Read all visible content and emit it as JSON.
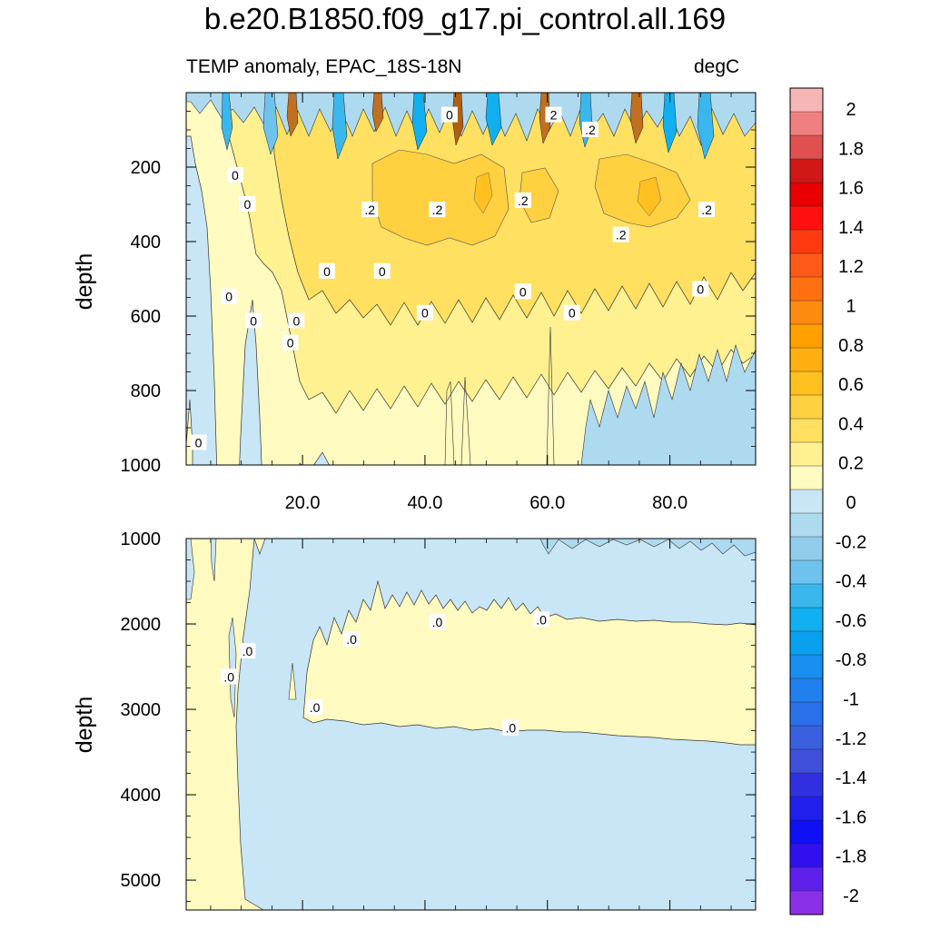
{
  "title": "b.e20.B1850.f09_g17.pi_control.all.169",
  "subtitle_left": "TEMP anomaly, EPAC_18S-18N",
  "subtitle_right": "degC",
  "chart_data": [
    {
      "type": "heatmap",
      "panel": "upper",
      "ylabel": "depth",
      "xlabel": "",
      "xlim": [
        1,
        94
      ],
      "ylim": [
        0,
        1000
      ],
      "y_reversed": true,
      "x_ticks": [
        "20.0",
        "40.0",
        "60.0",
        "80.0"
      ],
      "x_tick_values": [
        20,
        40,
        60,
        80
      ],
      "y_ticks": [
        "200",
        "400",
        "600",
        "800",
        "1000"
      ],
      "y_tick_values": [
        200,
        400,
        600,
        800,
        1000
      ],
      "contour_labels": [
        {
          "text": "0",
          "x": 44,
          "y": 60
        },
        {
          "text": "2",
          "x": 61,
          "y": 60
        },
        {
          "text": ".2",
          "x": 67,
          "y": 100
        },
        {
          "text": "0",
          "x": 9,
          "y": 222
        },
        {
          "text": "0",
          "x": 11,
          "y": 300
        },
        {
          "text": ".2",
          "x": 31,
          "y": 315
        },
        {
          "text": ".2",
          "x": 42,
          "y": 315
        },
        {
          "text": ".2",
          "x": 56,
          "y": 290
        },
        {
          "text": ".2",
          "x": 86,
          "y": 315
        },
        {
          "text": ".2",
          "x": 72,
          "y": 382
        },
        {
          "text": "0",
          "x": 24,
          "y": 480
        },
        {
          "text": "0",
          "x": 33,
          "y": 480
        },
        {
          "text": "0",
          "x": 8,
          "y": 548
        },
        {
          "text": "0",
          "x": 56,
          "y": 535
        },
        {
          "text": "0",
          "x": 85,
          "y": 528
        },
        {
          "text": "0",
          "x": 40,
          "y": 592
        },
        {
          "text": "0",
          "x": 64,
          "y": 592
        },
        {
          "text": "0",
          "x": 12,
          "y": 613
        },
        {
          "text": "0",
          "x": 19,
          "y": 613
        },
        {
          "text": "0",
          "x": 18,
          "y": 672
        },
        {
          "text": "0",
          "x": 3,
          "y": 940
        }
      ]
    },
    {
      "type": "heatmap",
      "panel": "lower",
      "ylabel": "depth",
      "xlabel": "",
      "xlim": [
        1,
        94
      ],
      "ylim": [
        1000,
        5350
      ],
      "y_reversed": true,
      "y_ticks": [
        "1000",
        "2000",
        "3000",
        "4000",
        "5000"
      ],
      "y_tick_values": [
        1000,
        2000,
        3000,
        4000,
        5000
      ],
      "contour_labels": [
        {
          "text": ".0",
          "x": 11,
          "y": 2320
        },
        {
          "text": ".0",
          "x": 8,
          "y": 2620
        },
        {
          "text": ".0",
          "x": 28,
          "y": 2180
        },
        {
          "text": ".0",
          "x": 42,
          "y": 1980
        },
        {
          "text": ".0",
          "x": 59,
          "y": 1950
        },
        {
          "text": ".0",
          "x": 22,
          "y": 2980
        },
        {
          "text": ".0",
          "x": 54,
          "y": 3220
        }
      ]
    }
  ],
  "colorbar": {
    "labels": [
      "2",
      "1.8",
      "1.6",
      "1.4",
      "1.2",
      "1",
      "0.8",
      "0.6",
      "0.4",
      "0.2",
      "0",
      "-0.2",
      "-0.4",
      "-0.6",
      "-0.8",
      "-1",
      "-1.2",
      "-1.4",
      "-1.6",
      "-1.8",
      "-2"
    ],
    "colors_top_to_bottom": [
      "#f7b6b6",
      "#f08080",
      "#e05050",
      "#d01818",
      "#e80000",
      "#ff1010",
      "#ff3a10",
      "#ff5a18",
      "#ff7010",
      "#ff8a10",
      "#ffa000",
      "#ffb010",
      "#ffc020",
      "#ffd040",
      "#ffe060",
      "#fff090",
      "#fffac0",
      "#c8e6f5",
      "#aedaf0",
      "#93cceb",
      "#6ec3ee",
      "#3ab8ee",
      "#10b0f0",
      "#0aa0f0",
      "#1890ef",
      "#2080ee",
      "#2a70ea",
      "#3a60e0",
      "#4050da",
      "#3030e0",
      "#2020ec",
      "#1010f5",
      "#3010ef",
      "#5e20ea",
      "#8a30e8"
    ]
  },
  "colors": {
    "neg_01": "#c8e6f5",
    "neg_02": "#aedaf0",
    "pos_01": "#fffac0",
    "pos_02": "#fff090",
    "pos_03": "#ffe060",
    "pos_04": "#ffd040",
    "pos_05": "#ffc020",
    "neg_05": "#3ab8ee",
    "neg_04": "#6ec3ee"
  }
}
